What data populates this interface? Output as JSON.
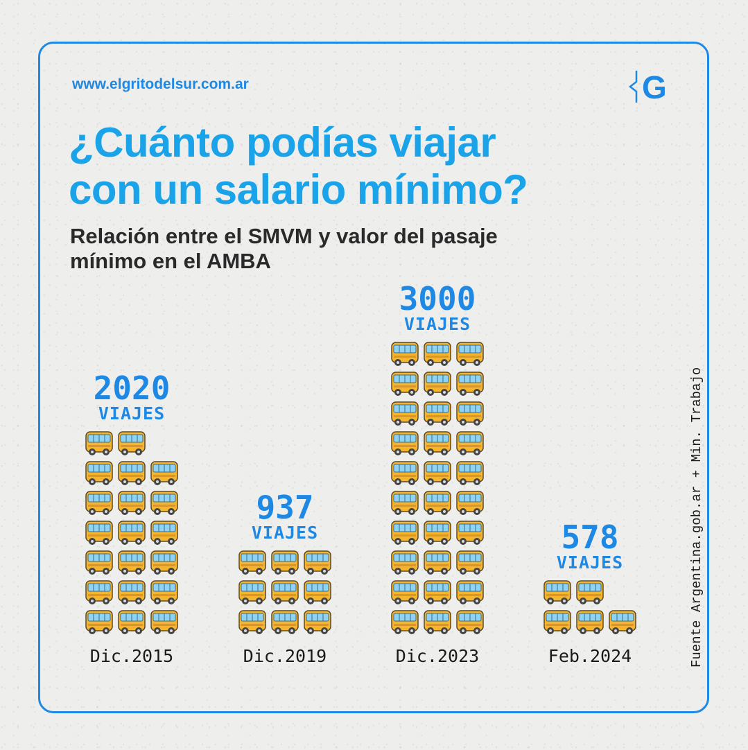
{
  "header": {
    "site": "www.elgritodelsur.com.ar",
    "logo_letter": "G",
    "title_line1": "¿Cuánto podías viajar",
    "title_line2": "con un salario mínimo?",
    "subtitle_line1": "Relación entre el SMVM y valor del pasaje",
    "subtitle_line2": "mínimo en el AMBA"
  },
  "source": "Fuente Argentina.gob.ar + Min. Trabajo",
  "colors": {
    "accent": "#1e88e5",
    "title": "#1aa3e8",
    "bus_body": "#f5b52e",
    "bus_window": "#8fd3f4"
  },
  "chart_data": {
    "type": "bar",
    "title": "¿Cuánto podías viajar con un salario mínimo?",
    "subtitle": "Relación entre el SMVM y valor del pasaje mínimo en el AMBA",
    "xlabel": "",
    "ylabel": "Viajes",
    "unit_label": "VIAJES",
    "categories": [
      "Dic.2015",
      "Dic.2019",
      "Dic.2023",
      "Feb.2024"
    ],
    "values": [
      2020,
      937,
      3000,
      578
    ],
    "value_labels": [
      "2020",
      "937",
      "3000",
      "578"
    ],
    "icons_shown": [
      20,
      9,
      30,
      5
    ],
    "icon": "bus-icon"
  }
}
